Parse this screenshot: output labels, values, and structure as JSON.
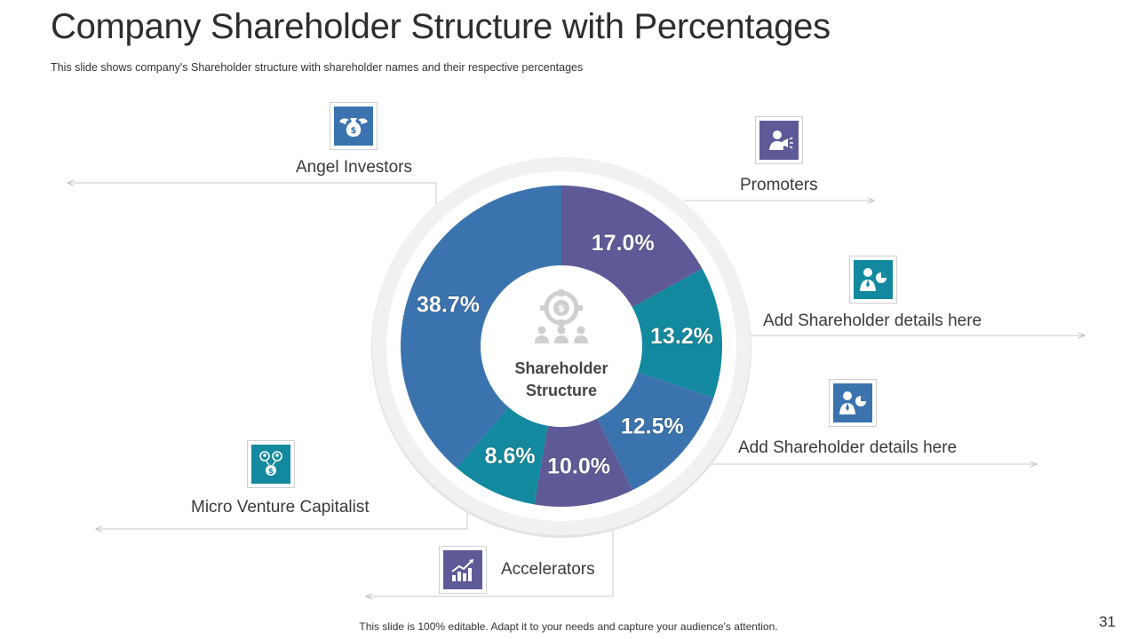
{
  "header": {
    "title": "Company Shareholder Structure with Percentages",
    "subtitle": "This slide shows company's Shareholder structure with shareholder names and their respective percentages"
  },
  "footer": {
    "note": "This slide is 100% editable. Adapt it to your needs and capture your audience's attention.",
    "page_number": "31"
  },
  "colors": {
    "purple": "#5e5a97",
    "teal": "#12899e",
    "blue": "#3a73ae",
    "ring": "#f1f1f1",
    "line": "#c8c8c8"
  },
  "center": {
    "line1": "Shareholder",
    "line2": "Structure",
    "icon": "dollar-target-people-icon"
  },
  "chart_data": {
    "type": "pie",
    "title": "Shareholder Structure",
    "unit": "%",
    "slices": [
      {
        "label": "Promoters",
        "value": 17.0,
        "display": "17.0%",
        "color": "purple"
      },
      {
        "label": "Add Shareholder details here",
        "value": 13.2,
        "display": "13.2%",
        "color": "teal"
      },
      {
        "label": "Add Shareholder details here",
        "value": 12.5,
        "display": "12.5%",
        "color": "blue"
      },
      {
        "label": "Accelerators",
        "value": 10.0,
        "display": "10.0%",
        "color": "purple"
      },
      {
        "label": "Micro Venture Capitalist",
        "value": 8.6,
        "display": "8.6%",
        "color": "teal"
      },
      {
        "label": "Angel Investors",
        "value": 38.7,
        "display": "38.7%",
        "color": "blue"
      }
    ]
  },
  "legend": {
    "angel": {
      "label": "Angel Investors",
      "icon": "money-bag-wings-icon",
      "color": "blue"
    },
    "promoters": {
      "label": "Promoters",
      "icon": "speaker-megaphone-icon",
      "color": "purple"
    },
    "detail1": {
      "label": "Add Shareholder details here",
      "icon": "presenter-chart-icon",
      "color": "teal"
    },
    "detail2": {
      "label": "Add Shareholder details here",
      "icon": "presenter-chart-icon",
      "color": "blue"
    },
    "micro": {
      "label": "Micro Venture Capitalist",
      "icon": "people-dollar-icon",
      "color": "teal"
    },
    "accelerators": {
      "label": "Accelerators",
      "icon": "growth-chart-icon",
      "color": "purple"
    }
  }
}
